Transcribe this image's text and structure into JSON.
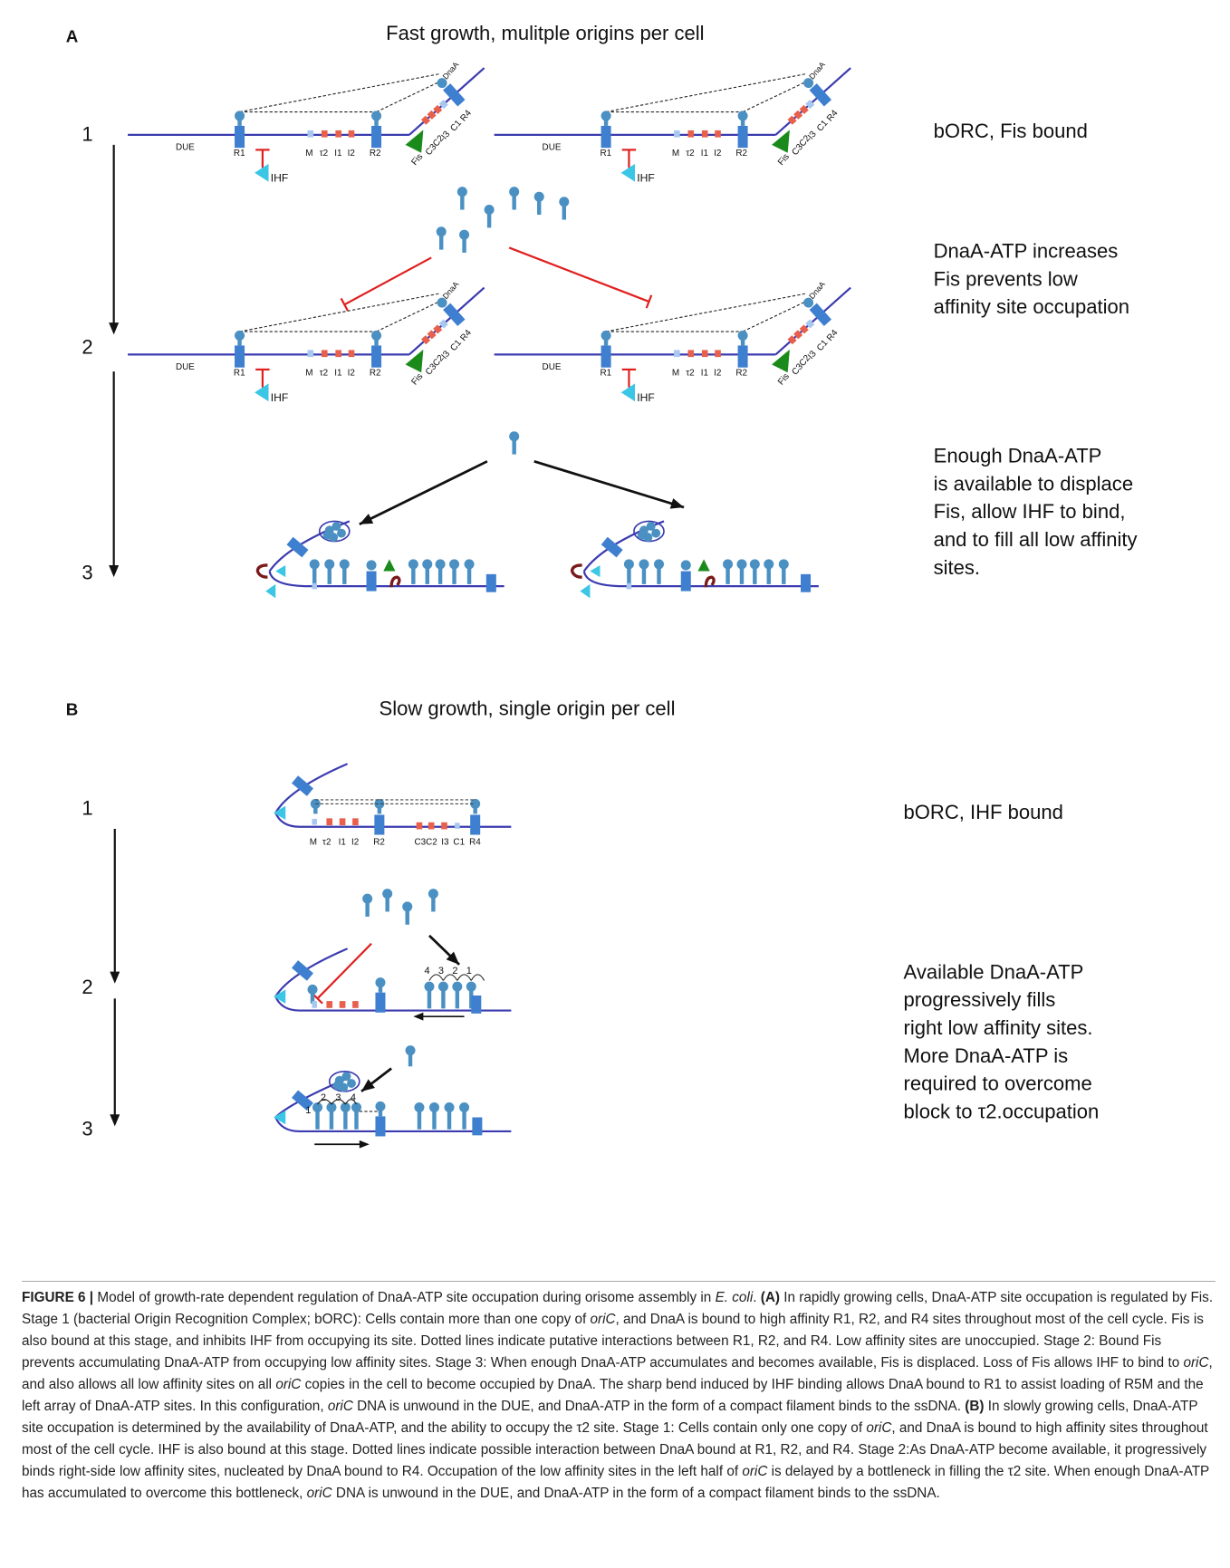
{
  "panel_a": {
    "label": "A",
    "title": "Fast growth, mulitple origins per cell",
    "stages": [
      "1",
      "2",
      "3"
    ],
    "notes": [
      [
        "bORC, Fis bound"
      ],
      [
        "DnaA-ATP increases",
        "Fis prevents low",
        "affinity site occupation"
      ],
      [
        "Enough DnaA-ATP",
        "is available to displace",
        "Fis, allow IHF to bind,",
        "and to fill all low affinity",
        "sites."
      ]
    ]
  },
  "panel_b": {
    "label": "B",
    "title": "Slow growth, single origin per cell",
    "stages": [
      "1",
      "2",
      "3"
    ],
    "notes": [
      [
        "bORC, IHF bound"
      ],
      [
        "Available DnaA-ATP",
        "progressively fills",
        "right low affinity sites.",
        "More DnaA-ATP is",
        "required to overcome",
        "block to τ2.occupation"
      ]
    ],
    "right_fill_order": [
      "4",
      "3",
      "2",
      "1"
    ],
    "left_fill_order": [
      "1",
      "2",
      "3",
      "4"
    ]
  },
  "sites": {
    "due": "DUE",
    "r1": "R1",
    "m": "M",
    "tau2": "τ2",
    "i1": "I1",
    "i2": "I2",
    "r2": "R2",
    "fis": "Fis",
    "c3c2": "C3C2",
    "i3": "I3",
    "c1": "C1",
    "r4": "R4",
    "dnaa": "DnaA",
    "ihf": "IHF"
  },
  "caption": [
    {
      "text": "FIGURE 6 | ",
      "style": "bold"
    },
    {
      "text": "Model of growth-rate dependent regulation of DnaA-ATP site occupation during orisome assembly in "
    },
    {
      "text": "E. coli",
      "style": "italic"
    },
    {
      "text": ". "
    },
    {
      "text": "(A)",
      "style": "bold"
    },
    {
      "text": " In rapidly growing cells, DnaA-ATP site occupation is regulated by Fis. Stage 1 (bacterial Origin Recognition Complex; bORC): Cells contain more than one copy of "
    },
    {
      "text": "oriC",
      "style": "italic"
    },
    {
      "text": ", and DnaA is bound to high affinity R1, R2, and R4 sites throughout most of the cell cycle. Fis is also bound at this stage, and inhibits IHF from occupying its site. Dotted lines indicate putative interactions between R1, R2, and R4. Low affinity sites are unoccupied. Stage 2: Bound Fis prevents accumulating DnaA-ATP from occupying low affinity sites. Stage 3: When enough DnaA-ATP accumulates and becomes available, Fis is displaced. Loss of Fis allows IHF to bind to "
    },
    {
      "text": "oriC",
      "style": "italic"
    },
    {
      "text": ", and also allows all low affinity sites on all "
    },
    {
      "text": "oriC",
      "style": "italic"
    },
    {
      "text": " copies in the cell to become occupied by DnaA. The sharp bend induced by IHF binding allows DnaA bound to R1 to assist loading of R5M and the left array of DnaA-ATP sites. In this configuration, "
    },
    {
      "text": "oriC",
      "style": "italic"
    },
    {
      "text": " DNA is unwound in the DUE, and DnaA-ATP in the form of a compact filament binds to the ssDNA. "
    },
    {
      "text": "(B)",
      "style": "bold"
    },
    {
      "text": " In slowly growing cells, DnaA-ATP site occupation is determined by the availability of DnaA-ATP, and the ability to occupy the τ2 site. Stage 1: Cells contain only one copy of "
    },
    {
      "text": "oriC",
      "style": "italic"
    },
    {
      "text": ", and DnaA is bound to high affinity sites throughout most of the cell cycle. IHF is also bound at this stage. Dotted lines indicate possible interaction between DnaA bound at R1, R2, and R4. Stage 2:As DnaA-ATP become available, it progressively binds right-side low affinity sites, nucleated by DnaA bound to R4. Occupation of the low affinity sites in the left half of "
    },
    {
      "text": "oriC",
      "style": "italic"
    },
    {
      "text": " is delayed by a bottleneck in filling the τ2 site. When enough DnaA-ATP has accumulated to overcome this bottleneck, "
    },
    {
      "text": "oriC",
      "style": "italic"
    },
    {
      "text": " DNA is unwound in the DUE, and DnaA-ATP in the form of a compact filament binds to the ssDNA."
    }
  ]
}
